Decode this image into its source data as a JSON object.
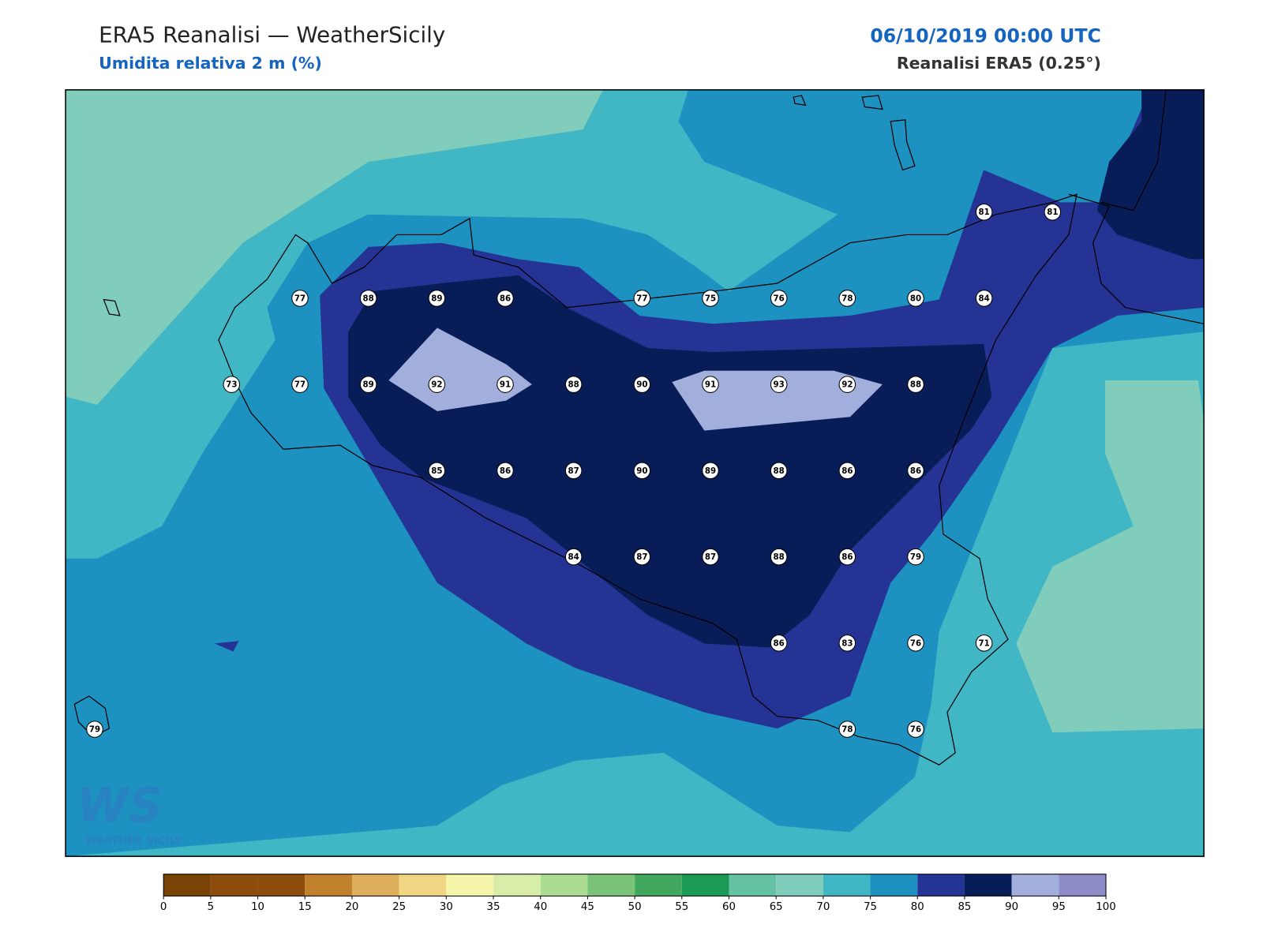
{
  "header": {
    "title": "ERA5 Reanalisi — WeatherSicily",
    "subtitle": "Umidita relativa 2 m (%)",
    "datetime": "06/10/2019 00:00 UTC",
    "source": "Reanalisi ERA5 (0.25°)"
  },
  "logo": {
    "mark": "WS",
    "text": "WEATHER SICILY"
  },
  "stations": {
    "rows": [
      [
        null,
        null,
        null,
        null,
        null,
        null,
        null,
        null,
        null,
        null,
        null,
        null,
        null,
        81,
        81
      ],
      [
        null,
        null,
        null,
        77,
        88,
        89,
        86,
        null,
        77,
        75,
        76,
        78,
        80,
        84,
        null
      ],
      [
        null,
        null,
        73,
        77,
        89,
        92,
        91,
        88,
        90,
        91,
        93,
        92,
        88,
        null,
        null
      ],
      [
        null,
        null,
        null,
        null,
        null,
        85,
        86,
        87,
        90,
        89,
        88,
        86,
        86,
        null,
        null
      ],
      [
        null,
        null,
        null,
        null,
        null,
        null,
        null,
        84,
        87,
        87,
        88,
        86,
        79,
        null,
        null
      ],
      [
        null,
        null,
        null,
        null,
        null,
        null,
        null,
        null,
        null,
        null,
        86,
        83,
        76,
        71,
        null
      ],
      [
        79,
        null,
        null,
        null,
        null,
        null,
        null,
        null,
        null,
        null,
        null,
        78,
        76,
        null,
        null
      ]
    ]
  },
  "colorbar": {
    "ticks": [
      0,
      5,
      10,
      15,
      20,
      25,
      30,
      35,
      40,
      45,
      50,
      55,
      60,
      65,
      70,
      75,
      80,
      85,
      90,
      95,
      100
    ],
    "colors": [
      "#7a4306",
      "#8c4d0c",
      "#8c4d0c",
      "#c0802c",
      "#dfb05c",
      "#f0d582",
      "#f5f5aa",
      "#d8eea8",
      "#acdc90",
      "#7ac47a",
      "#41a95e",
      "#1a9a55",
      "#66c2a4",
      "#80cdbb",
      "#41b6c4",
      "#1d91c0",
      "#253494",
      "#081d58",
      "#a2aedc",
      "#8e8cc8"
    ]
  }
}
